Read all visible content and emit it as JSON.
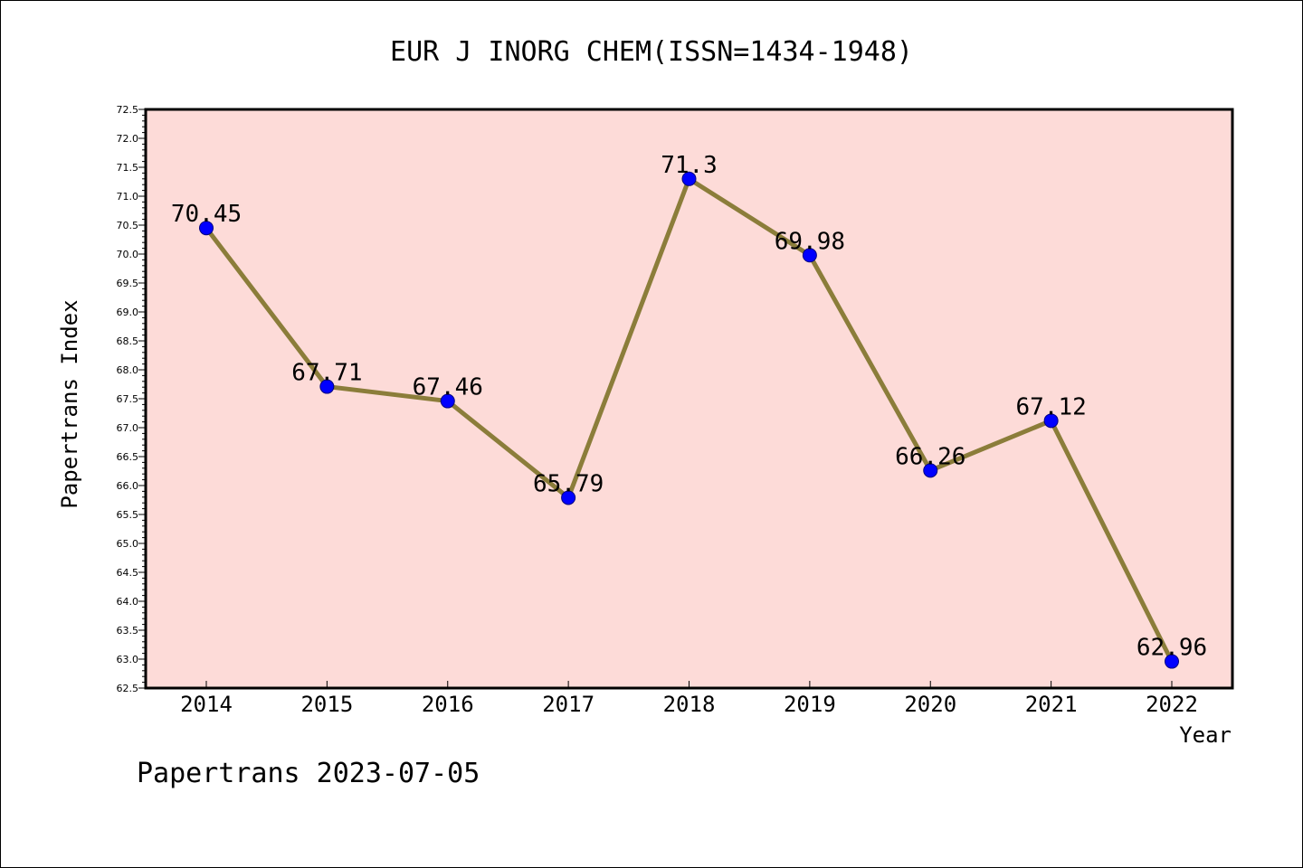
{
  "chart_data": {
    "type": "line",
    "title": "EUR J INORG CHEM(ISSN=1434-1948)",
    "xlabel": "Year",
    "ylabel": "Papertrans Index",
    "categories": [
      "2014",
      "2015",
      "2016",
      "2017",
      "2018",
      "2019",
      "2020",
      "2021",
      "2022"
    ],
    "values": [
      70.45,
      67.71,
      67.46,
      65.79,
      71.3,
      69.98,
      66.26,
      67.12,
      62.96
    ],
    "data_labels": [
      "70.45",
      "67.71",
      "67.46",
      "65.79",
      "71.3",
      "69.98",
      "66.26",
      "67.12",
      "62.96"
    ],
    "ylim": [
      62.5,
      72.5
    ],
    "ytick_labels": [
      "62.5",
      "63.0",
      "63.5",
      "64.0",
      "64.5",
      "65.0",
      "65.5",
      "66.0",
      "66.5",
      "67.0",
      "67.5",
      "68.0",
      "68.5",
      "69.0",
      "69.5",
      "70.0",
      "70.5",
      "71.0",
      "71.5",
      "72.0",
      "72.5"
    ],
    "grid": false,
    "legend": "none",
    "colors": {
      "plot_background": "#fddbd8",
      "line": "#8b7d3a",
      "marker": "#0000ff",
      "marker_edge": "#000080"
    }
  },
  "footer": {
    "text": "Papertrans 2023-07-05"
  }
}
